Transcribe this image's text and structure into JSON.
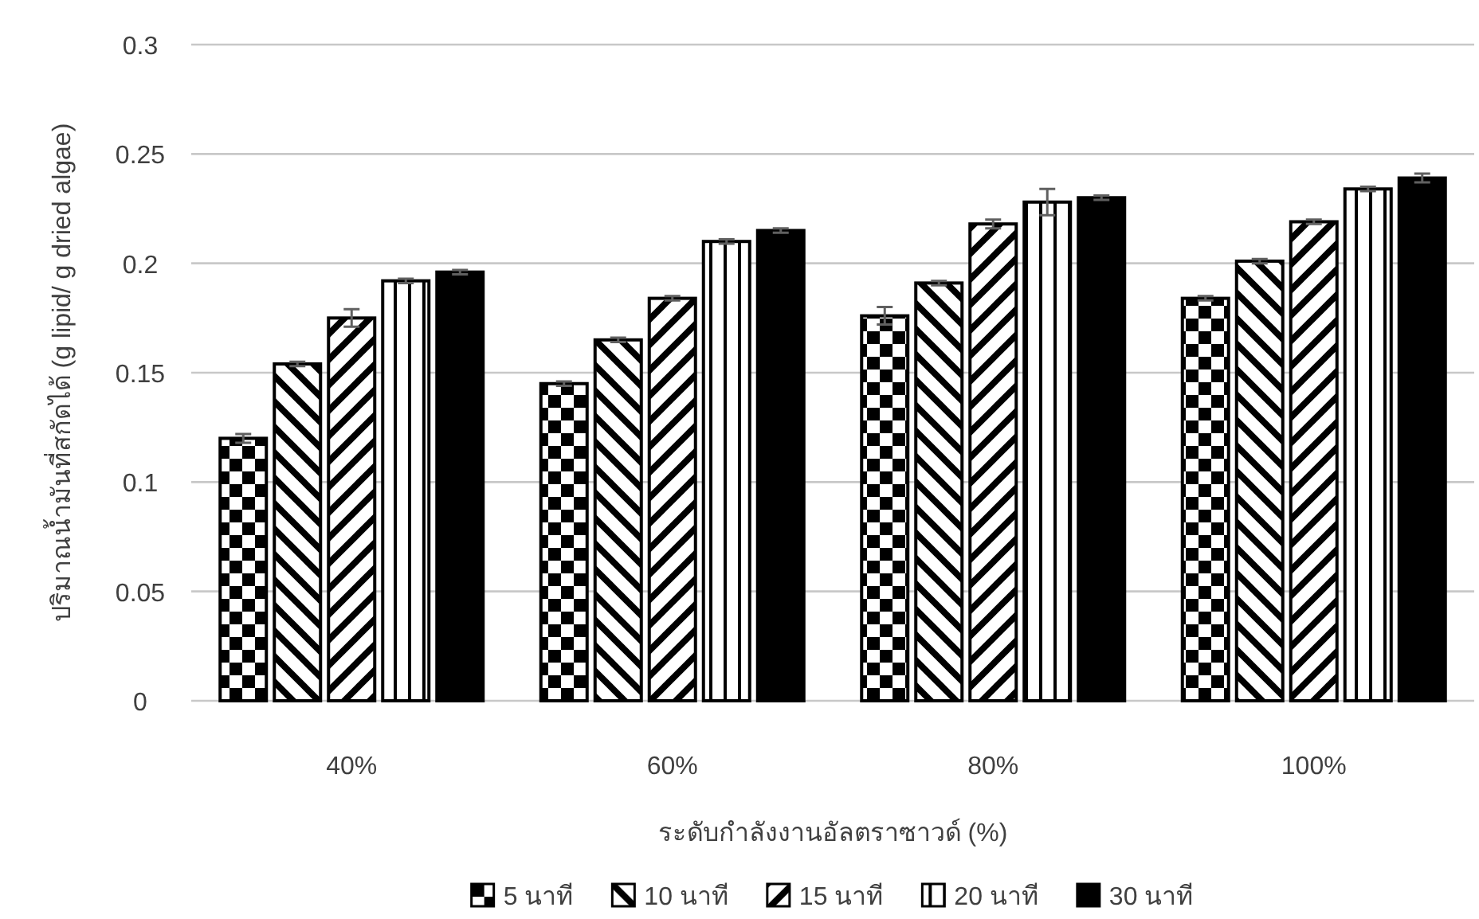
{
  "chart_data": {
    "type": "bar",
    "xlabel": "ระดับกำลังงานอัลตราซาวด์ (%)",
    "ylabel": "ปริมาณน้ำมันที่สกัดได้ (g lipid/ g dried algae)",
    "categories": [
      "40%",
      "60%",
      "80%",
      "100%"
    ],
    "series": [
      {
        "name": "5 นาที",
        "color": "#000000",
        "values": [
          0.12,
          0.145,
          0.176,
          0.184
        ],
        "errors": [
          0.002,
          0.001,
          0.004,
          0.001
        ]
      },
      {
        "name": "10 นาที",
        "color": "#000000",
        "values": [
          0.154,
          0.165,
          0.191,
          0.201
        ],
        "errors": [
          0.001,
          0.001,
          0.001,
          0.001
        ]
      },
      {
        "name": "15 นาที",
        "color": "#000000",
        "values": [
          0.175,
          0.184,
          0.218,
          0.219
        ],
        "errors": [
          0.004,
          0.001,
          0.002,
          0.001
        ]
      },
      {
        "name": "20 นาที",
        "color": "#000000",
        "values": [
          0.192,
          0.21,
          0.228,
          0.234
        ],
        "errors": [
          0.001,
          0.001,
          0.006,
          0.001
        ]
      },
      {
        "name": "30 นาที",
        "color": "#000000",
        "values": [
          0.196,
          0.215,
          0.23,
          0.239
        ],
        "errors": [
          0.001,
          0.001,
          0.001,
          0.002
        ]
      }
    ],
    "ylim": [
      0,
      0.3
    ],
    "yticks": [
      0,
      0.05,
      0.1,
      0.15,
      0.2,
      0.25,
      0.3
    ],
    "grid": "y",
    "legend": "bottom"
  }
}
